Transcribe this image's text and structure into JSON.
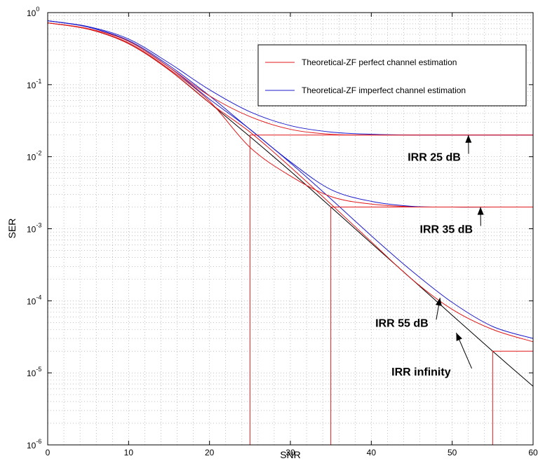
{
  "chart_data": {
    "type": "line",
    "title": "",
    "xlabel": "SNR",
    "ylabel": "SER",
    "xlim": [
      0,
      60
    ],
    "ylim": [
      1e-06,
      1
    ],
    "yscale": "log",
    "grid": true,
    "legend_position": "top-right",
    "x_ticks": [
      "0",
      "10",
      "20",
      "30",
      "40",
      "50",
      "60"
    ],
    "y_ticks": [
      {
        "base": "10",
        "exp": "0"
      },
      {
        "base": "10",
        "exp": "-1"
      },
      {
        "base": "10",
        "exp": "-2"
      },
      {
        "base": "10",
        "exp": "-3"
      },
      {
        "base": "10",
        "exp": "-4"
      },
      {
        "base": "10",
        "exp": "-5"
      },
      {
        "base": "10",
        "exp": "-6"
      }
    ],
    "legend": [
      {
        "label": "Theoretical-ZF perfect channel estimation",
        "color": "#e0191b"
      },
      {
        "label": "Theoretical-ZF imperfect channel estimation",
        "color": "#1c1ccc"
      }
    ],
    "series": [
      {
        "color": "#000000",
        "x": [
          0,
          5,
          10,
          15,
          20,
          25,
          30,
          35,
          40,
          45,
          50,
          55,
          60
        ],
        "y": [
          0.72,
          0.59,
          0.37,
          0.16,
          0.056,
          0.019,
          0.0063,
          0.002,
          0.00063,
          0.0002,
          6.3e-05,
          2e-05,
          6.5e-06
        ]
      },
      {
        "color": "#e0191b",
        "x": [
          0,
          5,
          10,
          15,
          20,
          25,
          30,
          35,
          40,
          45,
          50,
          55,
          60
        ],
        "y": [
          0.72,
          0.59,
          0.37,
          0.16,
          0.056,
          0.022,
          0.0072,
          0.0022,
          0.00066,
          0.0002,
          7.6e-05,
          4e-05,
          2.7e-05
        ]
      },
      {
        "color": "#1c1ccc",
        "x": [
          0,
          5,
          10,
          15,
          20,
          25,
          30,
          35,
          40,
          45,
          50,
          55,
          60
        ],
        "y": [
          0.77,
          0.63,
          0.4,
          0.175,
          0.063,
          0.024,
          0.0082,
          0.0026,
          0.0008,
          0.00026,
          9.5e-05,
          4.4e-05,
          3e-05
        ]
      },
      {
        "color": "#e0191b",
        "x": [
          0,
          5,
          10,
          15,
          20,
          25,
          30,
          35,
          40,
          45,
          50,
          55,
          60
        ],
        "y": [
          0.72,
          0.59,
          0.38,
          0.165,
          0.059,
          0.0135,
          0.0054,
          0.0028,
          0.0022,
          0.00202,
          0.002,
          0.002,
          0.002
        ]
      },
      {
        "color": "#1c1ccc",
        "x": [
          0,
          5,
          10,
          15,
          20,
          25,
          30,
          35,
          40,
          45,
          50,
          55,
          60
        ],
        "y": [
          0.77,
          0.63,
          0.41,
          0.185,
          0.07,
          0.024,
          0.0085,
          0.0035,
          0.0024,
          0.00205,
          0.002,
          0.002,
          0.002
        ]
      },
      {
        "color": "#e0191b",
        "x": [
          0,
          5,
          10,
          15,
          20,
          25,
          30,
          35,
          40,
          45,
          50,
          55,
          60
        ],
        "y": [
          0.72,
          0.6,
          0.4,
          0.175,
          0.07,
          0.036,
          0.024,
          0.0205,
          0.02,
          0.02,
          0.02,
          0.02,
          0.02
        ]
      },
      {
        "color": "#1c1ccc",
        "x": [
          0,
          5,
          10,
          15,
          20,
          25,
          30,
          35,
          40,
          45,
          50,
          55,
          60
        ],
        "y": [
          0.77,
          0.64,
          0.43,
          0.2,
          0.085,
          0.042,
          0.027,
          0.022,
          0.0205,
          0.02,
          0.02,
          0.02,
          0.02
        ]
      }
    ],
    "reference_lines": [
      {
        "color": "#e0191b",
        "x": [
          25,
          25,
          60
        ],
        "y": [
          1e-06,
          0.02,
          0.02
        ]
      },
      {
        "color": "#e0191b",
        "x": [
          35,
          35,
          60
        ],
        "y": [
          1e-06,
          0.002,
          0.002
        ]
      },
      {
        "color": "#e0191b",
        "x": [
          55,
          55,
          60
        ],
        "y": [
          1e-06,
          2e-05,
          2e-05
        ]
      }
    ],
    "annotations": [
      {
        "text": "IRR 25 dB",
        "x": 44.5,
        "y": 0.01,
        "arrow_to": [
          52,
          0.02
        ]
      },
      {
        "text": "IRR 35 dB",
        "x": 46,
        "y": 0.001,
        "arrow_to": [
          53.5,
          0.002
        ]
      },
      {
        "text": "IRR 55 dB",
        "x": 40.5,
        "y": 5e-05,
        "arrow_to": [
          48.5,
          0.00011
        ]
      },
      {
        "text": "IRR infinity",
        "x": 42.5,
        "y": 1.05e-05,
        "arrow_to": [
          50.5,
          3.6e-05
        ]
      }
    ]
  }
}
